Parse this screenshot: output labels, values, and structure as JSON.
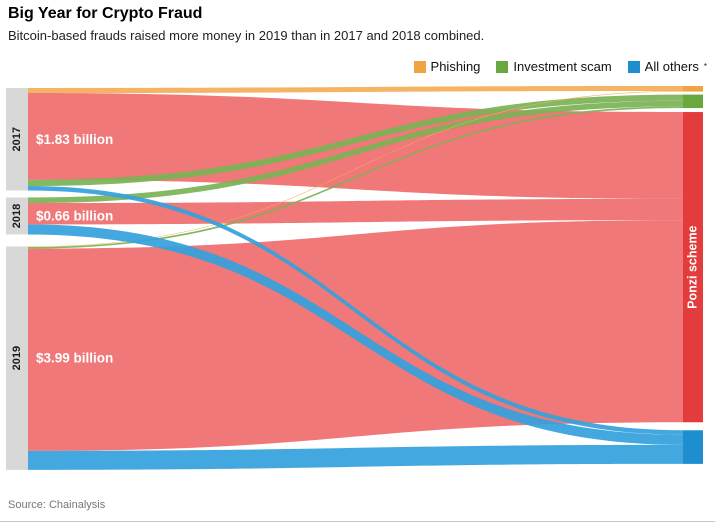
{
  "header": {
    "title": "Big Year for Crypto Fraud",
    "subtitle": "Bitcoin-based frauds raised more money in 2019 than in 2017 and 2018 combined."
  },
  "legend": {
    "items": [
      {
        "key": "phishing",
        "label": "Phishing",
        "suffix": "",
        "color": "#f0a343"
      },
      {
        "key": "investment",
        "label": "Investment scam",
        "suffix": "",
        "color": "#69a83f"
      },
      {
        "key": "others",
        "label": "All others",
        "suffix": "*",
        "color": "#1f8ece"
      }
    ]
  },
  "source": "Source: Chainalysis",
  "chart_data": {
    "type": "sankey",
    "unit": "$ billions",
    "left_nodes": [
      {
        "id": "2017",
        "label": "2017",
        "total": 1.83,
        "value_label": "$1.83 billion"
      },
      {
        "id": "2018",
        "label": "2018",
        "total": 0.66,
        "value_label": "$0.66 billion"
      },
      {
        "id": "2019",
        "label": "2019",
        "total": 3.99,
        "value_label": "$3.99 billion"
      }
    ],
    "right_nodes": [
      {
        "id": "phishing",
        "label": "Phishing",
        "show_label": false
      },
      {
        "id": "investment",
        "label": "Investment scam",
        "show_label": false
      },
      {
        "id": "ponzi",
        "label": "Ponzi scheme",
        "show_label": true
      },
      {
        "id": "others",
        "label": "All others",
        "show_label": false
      }
    ],
    "links": [
      {
        "source": "2017",
        "target": "phishing",
        "value": 0.09
      },
      {
        "source": "2017",
        "target": "ponzi",
        "value": 1.55
      },
      {
        "source": "2017",
        "target": "investment",
        "value": 0.11
      },
      {
        "source": "2017",
        "target": "others",
        "value": 0.08
      },
      {
        "source": "2018",
        "target": "investment",
        "value": 0.1
      },
      {
        "source": "2018",
        "target": "ponzi",
        "value": 0.38
      },
      {
        "source": "2018",
        "target": "others",
        "value": 0.18
      },
      {
        "source": "2019",
        "target": "phishing",
        "value": 0.01
      },
      {
        "source": "2019",
        "target": "investment",
        "value": 0.03
      },
      {
        "source": "2019",
        "target": "ponzi",
        "value": 3.61
      },
      {
        "source": "2019",
        "target": "others",
        "value": 0.34
      }
    ],
    "colors": {
      "phishing": {
        "node": "#f0a343",
        "flow": "#f3ae57"
      },
      "investment": {
        "node": "#69a83f",
        "flow": "#7cb356"
      },
      "ponzi": {
        "node": "#e23c3c",
        "flow": "#ef6e6e"
      },
      "others": {
        "node": "#1f8ece",
        "flow": "#35a1dd"
      },
      "year_node": "#d8d8d8"
    }
  }
}
